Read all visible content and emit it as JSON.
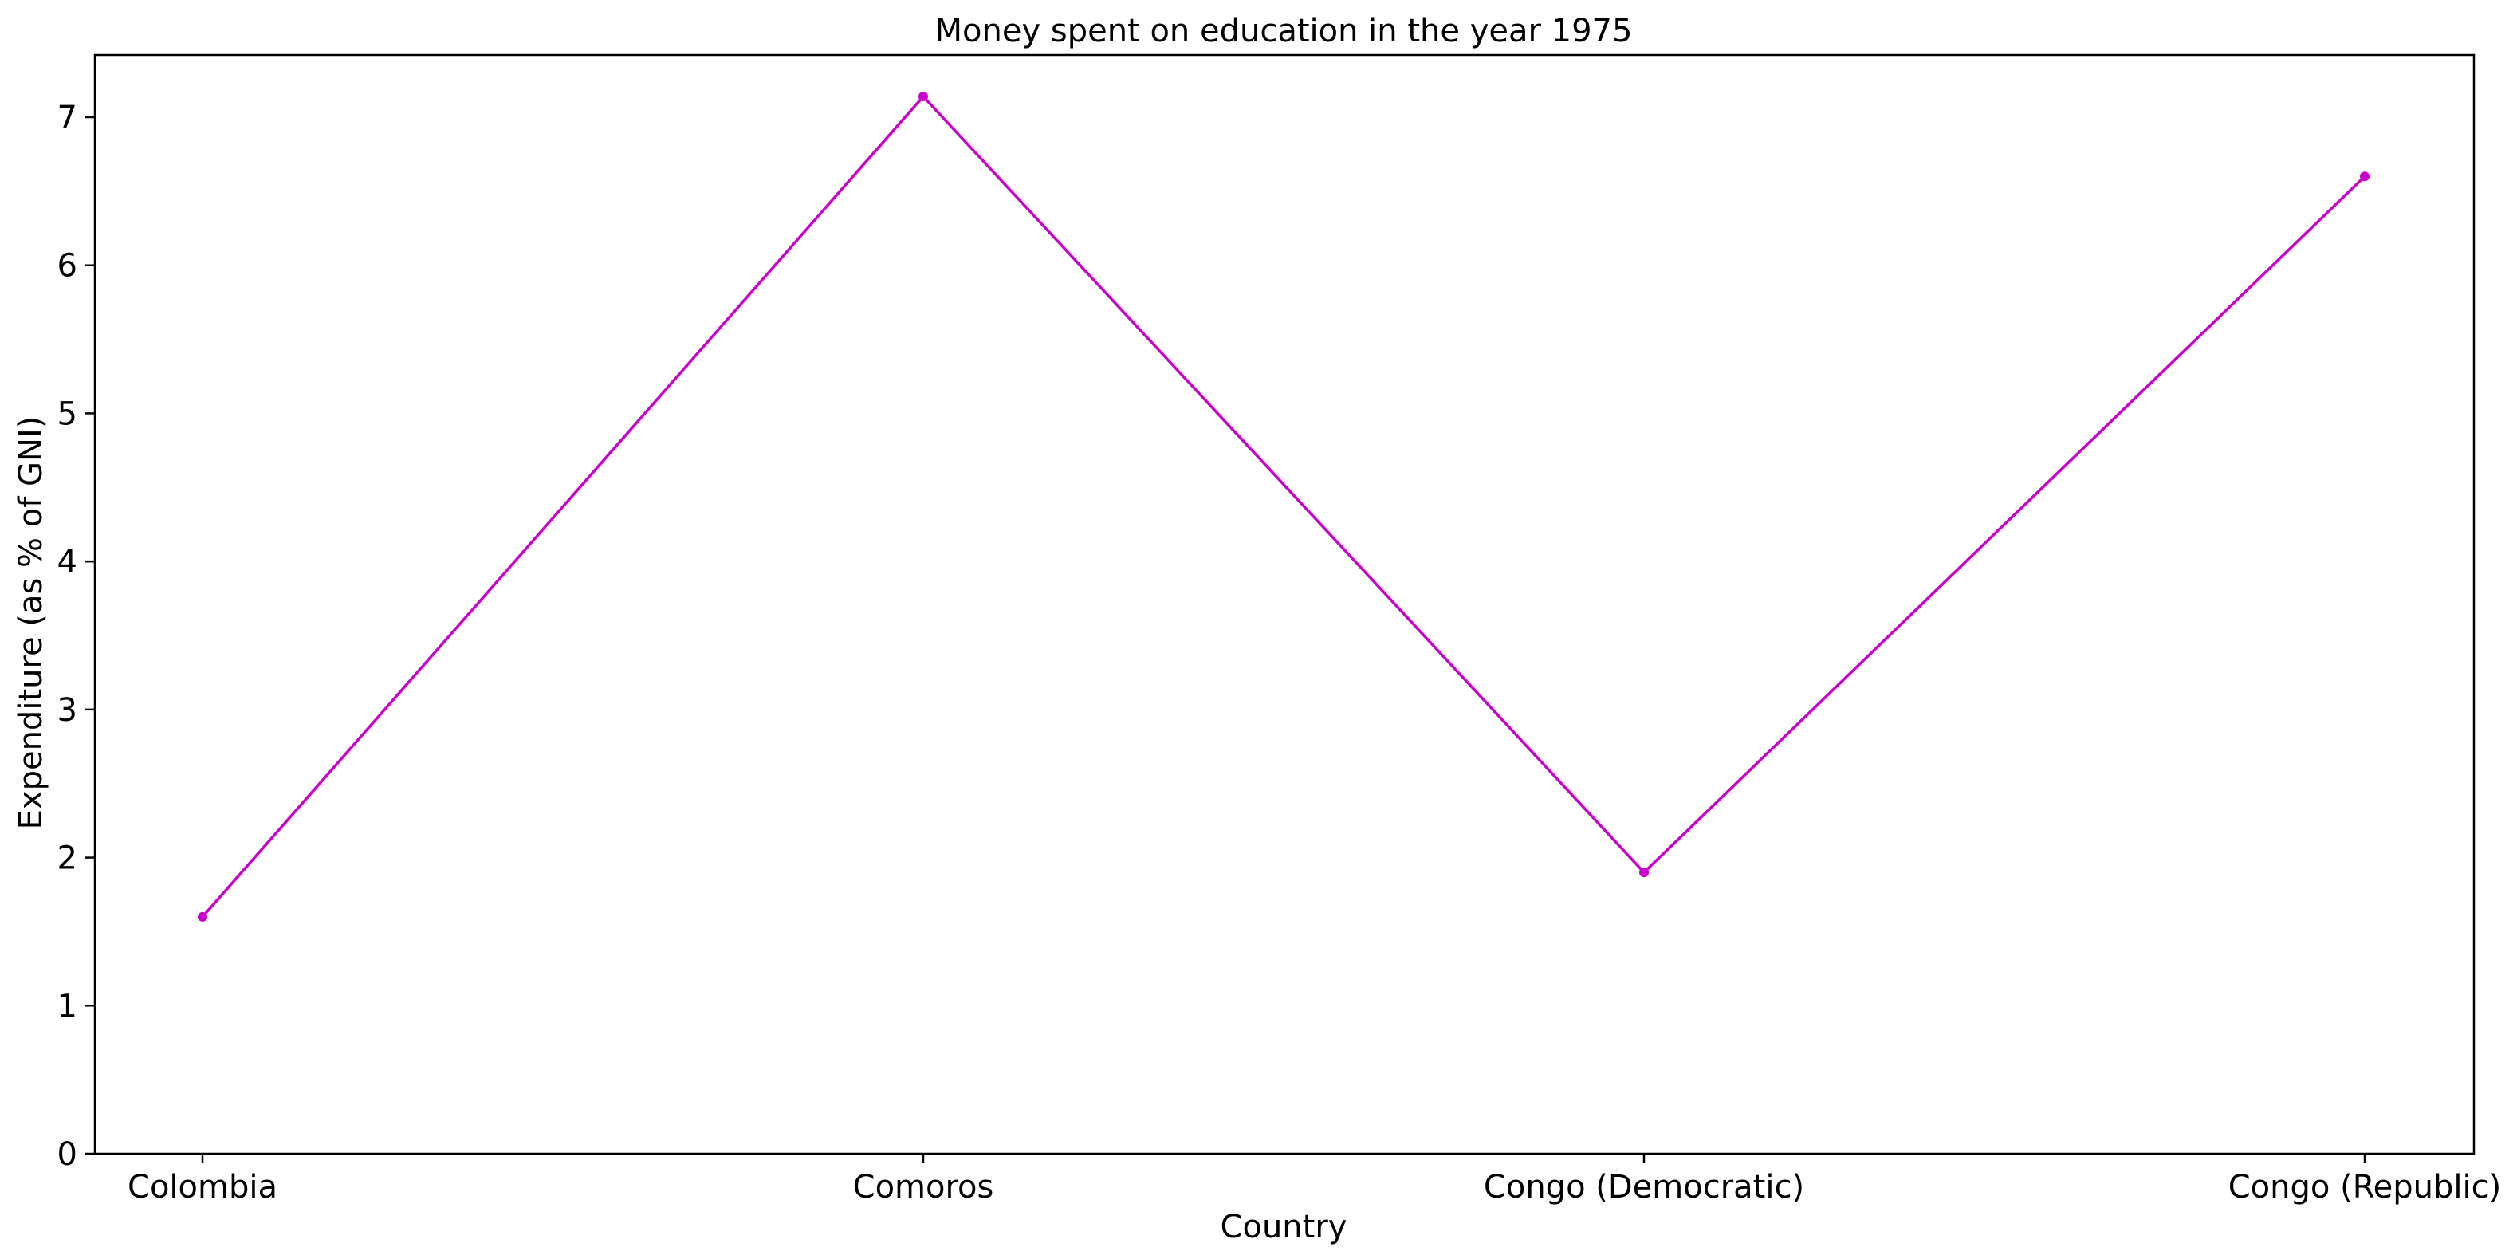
{
  "chart_data": {
    "type": "line",
    "title": "Money spent on education in the year 1975",
    "xlabel": "Country",
    "ylabel": "Expenditure (as % of GNI)",
    "categories": [
      "Colombia",
      "Comoros",
      "Congo (Democratic)",
      "Congo (Republic)"
    ],
    "series": [
      {
        "values": [
          1.6,
          7.14,
          1.9,
          6.6
        ],
        "color": "#cc00cc",
        "marker": "circle"
      }
    ],
    "ylim": [
      0,
      7.42
    ],
    "yticks": [
      0,
      1,
      2,
      3,
      4,
      5,
      6,
      7
    ],
    "grid": false,
    "legend": "none"
  }
}
